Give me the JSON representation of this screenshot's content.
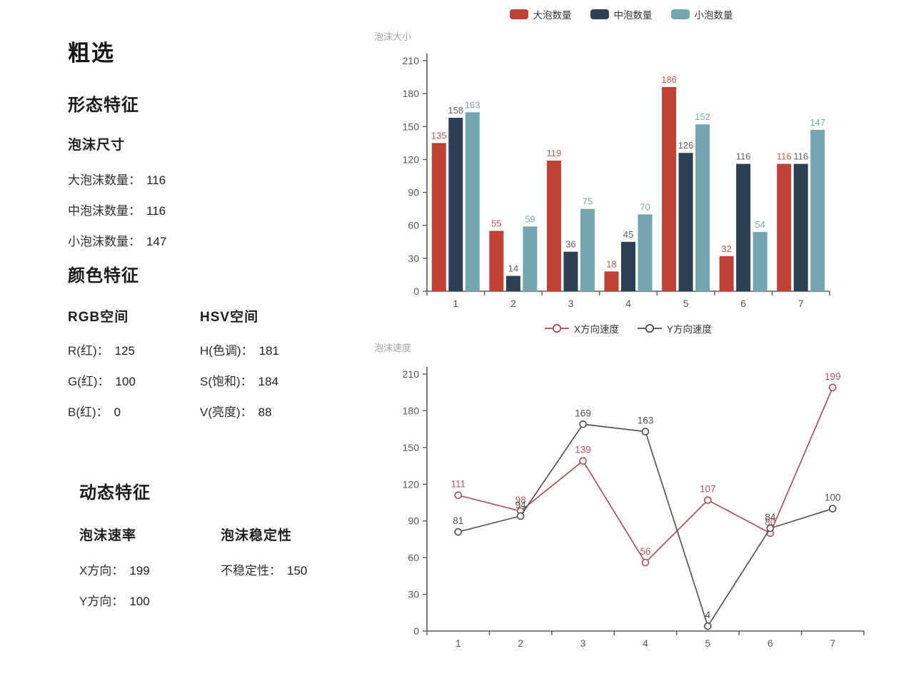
{
  "left_panel": {
    "title": "粗选",
    "morphology": {
      "heading": "形态特征",
      "size": {
        "subheading": "泡沫尺寸",
        "items": [
          {
            "label": "大泡沫数量：",
            "value": "116"
          },
          {
            "label": "中泡沫数量：",
            "value": "116"
          },
          {
            "label": "小泡沫数量：",
            "value": "147"
          }
        ]
      }
    },
    "color": {
      "heading": "颜色特征",
      "rgb": {
        "subheading": "RGB空间",
        "items": [
          {
            "label": "R(红)：",
            "value": "125"
          },
          {
            "label": "G(红)：",
            "value": "100"
          },
          {
            "label": "B(红)：",
            "value": "0"
          }
        ]
      },
      "hsv": {
        "subheading": "HSV空间",
        "items": [
          {
            "label": "H(色调)：",
            "value": "181"
          },
          {
            "label": "S(饱和)：",
            "value": "184"
          },
          {
            "label": "V(亮度)：",
            "value": "88"
          }
        ]
      }
    },
    "dynamic": {
      "heading": "动态特征",
      "rate": {
        "subheading": "泡沫速率",
        "items": [
          {
            "label": "X方向：",
            "value": "199"
          },
          {
            "label": "Y方向：",
            "value": "100"
          }
        ]
      },
      "stability": {
        "subheading": "泡沫稳定性",
        "items": [
          {
            "label": "不稳定性：",
            "value": "150"
          }
        ]
      }
    }
  },
  "chart_data": [
    {
      "type": "bar",
      "title": "泡沫大小",
      "categories": [
        "1",
        "2",
        "3",
        "4",
        "5",
        "6",
        "7"
      ],
      "series": [
        {
          "name": "大泡数量",
          "color": "#bf4237",
          "label_color": "#c25b51",
          "values": [
            135,
            55,
            119,
            18,
            186,
            32,
            116
          ]
        },
        {
          "name": "中泡数量",
          "color": "#2e4154",
          "label_color": "#566370",
          "values": [
            158,
            14,
            36,
            45,
            126,
            116,
            116
          ]
        },
        {
          "name": "小泡数量",
          "color": "#72a5ac",
          "label_color": "#7aa9b0",
          "values": [
            163,
            59,
            75,
            70,
            152,
            54,
            147
          ]
        }
      ],
      "xlabel": "",
      "ylabel": "泡沫大小",
      "ylim": [
        0,
        210
      ],
      "ytick_step": 30,
      "grid": false,
      "legend_position": "top",
      "value_labels": true
    },
    {
      "type": "line",
      "title": "泡沫速度",
      "x": [
        "1",
        "2",
        "3",
        "4",
        "5",
        "6",
        "7"
      ],
      "series": [
        {
          "name": "X方向速度",
          "color": "#a84b54",
          "label_color": "#b25560",
          "values": [
            111,
            98,
            139,
            56,
            107,
            80,
            199
          ]
        },
        {
          "name": "Y方向速度",
          "color": "#4d4d4d",
          "label_color": "#4f4f4f",
          "values": [
            81,
            94,
            169,
            163,
            4,
            84,
            100
          ]
        }
      ],
      "xlabel": "",
      "ylabel": "泡沫速度",
      "ylim": [
        0,
        210
      ],
      "ytick_step": 30,
      "grid": false,
      "legend_position": "top",
      "marker": "open-circle",
      "value_labels": true
    }
  ],
  "style": {
    "axis_line_color": "#595b60",
    "tick_label_color": "#55575c",
    "axis_title_color": "#a0a6ad",
    "legend_text_color": "#333333"
  }
}
